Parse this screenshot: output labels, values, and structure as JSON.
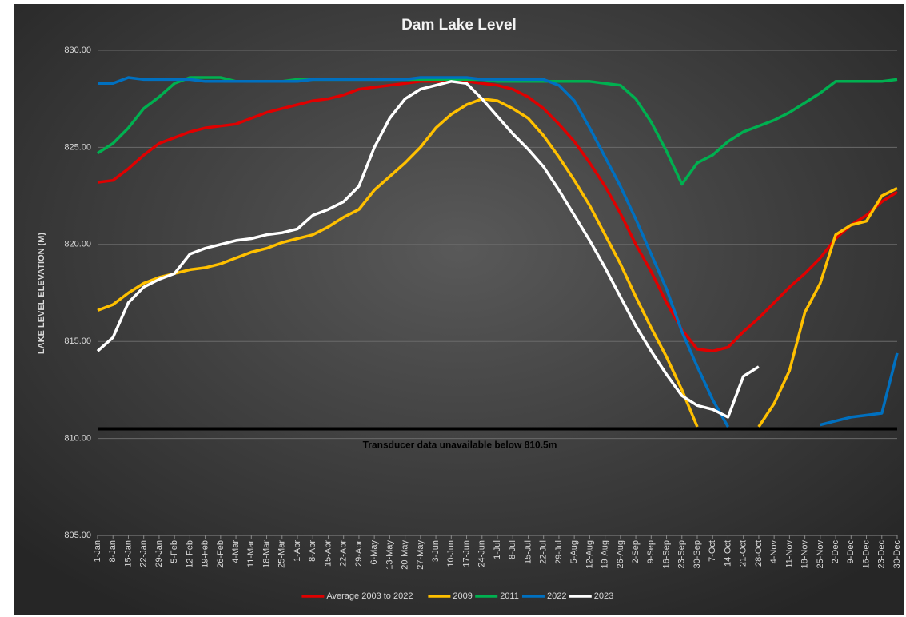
{
  "chart_data": {
    "type": "line",
    "title": "Dam Lake Level",
    "y_label": "LAKE LEVEL ELEVATION (M)",
    "categories": [
      "1-Jan",
      "8-Jan",
      "15-Jan",
      "22-Jan",
      "29-Jan",
      "5-Feb",
      "12-Feb",
      "19-Feb",
      "26-Feb",
      "4-Mar",
      "11-Mar",
      "18-Mar",
      "25-Mar",
      "1-Apr",
      "8-Apr",
      "15-Apr",
      "22-Apr",
      "29-Apr",
      "6-May",
      "13-May",
      "20-May",
      "27-May",
      "3-Jun",
      "10-Jun",
      "17-Jun",
      "24-Jun",
      "1-Jul",
      "8-Jul",
      "15-Jul",
      "22-Jul",
      "29-Jul",
      "5-Aug",
      "12-Aug",
      "19-Aug",
      "26-Aug",
      "2-Sep",
      "9-Sep",
      "16-Sep",
      "23-Sep",
      "30-Sep",
      "7-Oct",
      "14-Oct",
      "21-Oct",
      "28-Oct",
      "4-Nov",
      "11-Nov",
      "18-Nov",
      "25-Nov",
      "2-Dec",
      "9-Dec",
      "16-Dec",
      "23-Dec",
      "30-Dec"
    ],
    "series": [
      {
        "name": "Average 2003 to 2022",
        "color": "#e00000",
        "values": [
          823.2,
          823.3,
          823.9,
          824.6,
          825.2,
          825.5,
          825.8,
          826.0,
          826.1,
          826.2,
          826.5,
          826.8,
          827.0,
          827.2,
          827.4,
          827.5,
          827.7,
          828.0,
          828.1,
          828.2,
          828.3,
          828.4,
          828.4,
          828.4,
          828.4,
          828.3,
          828.2,
          828.0,
          827.6,
          827.0,
          826.2,
          825.3,
          824.2,
          823.0,
          821.6,
          820.0,
          818.6,
          817.0,
          815.6,
          814.6,
          814.5,
          814.7,
          815.5,
          816.2,
          817.0,
          817.8,
          818.5,
          819.3,
          820.3,
          821.0,
          821.5,
          822.2,
          822.7
        ]
      },
      {
        "name": "2009",
        "color": "#ffc000",
        "values": [
          816.6,
          816.9,
          817.5,
          818.0,
          818.3,
          818.5,
          818.7,
          818.8,
          819.0,
          819.3,
          819.6,
          819.8,
          820.1,
          820.3,
          820.5,
          820.9,
          821.4,
          821.8,
          822.8,
          823.5,
          824.2,
          825.0,
          826.0,
          826.7,
          827.2,
          827.5,
          827.4,
          827.0,
          826.5,
          825.6,
          824.5,
          823.3,
          822.0,
          820.5,
          819.0,
          817.3,
          815.7,
          814.2,
          812.5,
          810.6,
          null,
          null,
          null,
          810.6,
          811.8,
          813.5,
          816.5,
          818.0,
          820.5,
          821.0,
          821.2,
          822.5,
          822.9
        ]
      },
      {
        "name": "2011",
        "color": "#00b050",
        "values": [
          824.7,
          825.2,
          826.0,
          827.0,
          827.6,
          828.3,
          828.6,
          828.6,
          828.6,
          828.4,
          828.4,
          828.4,
          828.4,
          828.5,
          828.5,
          828.5,
          828.5,
          828.5,
          828.5,
          828.5,
          828.5,
          828.5,
          828.5,
          828.5,
          828.5,
          828.5,
          828.4,
          828.4,
          828.4,
          828.4,
          828.4,
          828.4,
          828.4,
          828.3,
          828.2,
          827.5,
          826.3,
          824.8,
          823.1,
          824.2,
          824.6,
          825.3,
          825.8,
          826.1,
          826.4,
          826.8,
          827.3,
          827.8,
          828.4,
          828.4,
          828.4,
          828.4,
          828.5
        ]
      },
      {
        "name": "2022",
        "color": "#0070c0",
        "values": [
          828.3,
          828.3,
          828.6,
          828.5,
          828.5,
          828.5,
          828.5,
          828.4,
          828.4,
          828.4,
          828.4,
          828.4,
          828.4,
          828.4,
          828.5,
          828.5,
          828.5,
          828.5,
          828.5,
          828.5,
          828.5,
          828.6,
          828.6,
          828.6,
          828.6,
          828.5,
          828.5,
          828.5,
          828.5,
          828.5,
          828.2,
          827.4,
          826.0,
          824.5,
          823.0,
          821.3,
          819.5,
          817.7,
          815.5,
          813.7,
          812.0,
          810.6,
          null,
          null,
          null,
          null,
          null,
          810.7,
          810.9,
          811.1,
          811.2,
          811.3,
          814.4
        ]
      },
      {
        "name": "2023",
        "color": "#ffffff",
        "values": [
          814.5,
          815.2,
          817.0,
          817.8,
          818.2,
          818.5,
          819.5,
          819.8,
          820.0,
          820.2,
          820.3,
          820.5,
          820.6,
          820.8,
          821.5,
          821.8,
          822.2,
          823.0,
          825.0,
          826.5,
          827.5,
          828.0,
          828.2,
          828.4,
          828.3,
          827.5,
          826.6,
          825.7,
          824.9,
          824.0,
          822.8,
          821.5,
          820.2,
          818.8,
          817.3,
          815.8,
          814.5,
          813.3,
          812.2,
          811.7,
          811.5,
          811.1,
          813.2,
          813.7,
          null,
          null,
          null,
          null,
          null,
          null,
          null,
          null,
          null
        ]
      }
    ],
    "threshold": 810.5,
    "threshold_color": "#000000",
    "annotation": "Transducer data unavailable below 810.5m",
    "ylim": [
      805,
      830
    ],
    "yticks": [
      {
        "value": 805,
        "label": "805.00"
      },
      {
        "value": 810,
        "label": "810.00"
      },
      {
        "value": 815,
        "label": "815.00"
      },
      {
        "value": 820,
        "label": "820.00"
      },
      {
        "value": 825,
        "label": "825.00"
      },
      {
        "value": 830,
        "label": "830.00"
      }
    ],
    "grid": true,
    "legend": "bottom"
  }
}
